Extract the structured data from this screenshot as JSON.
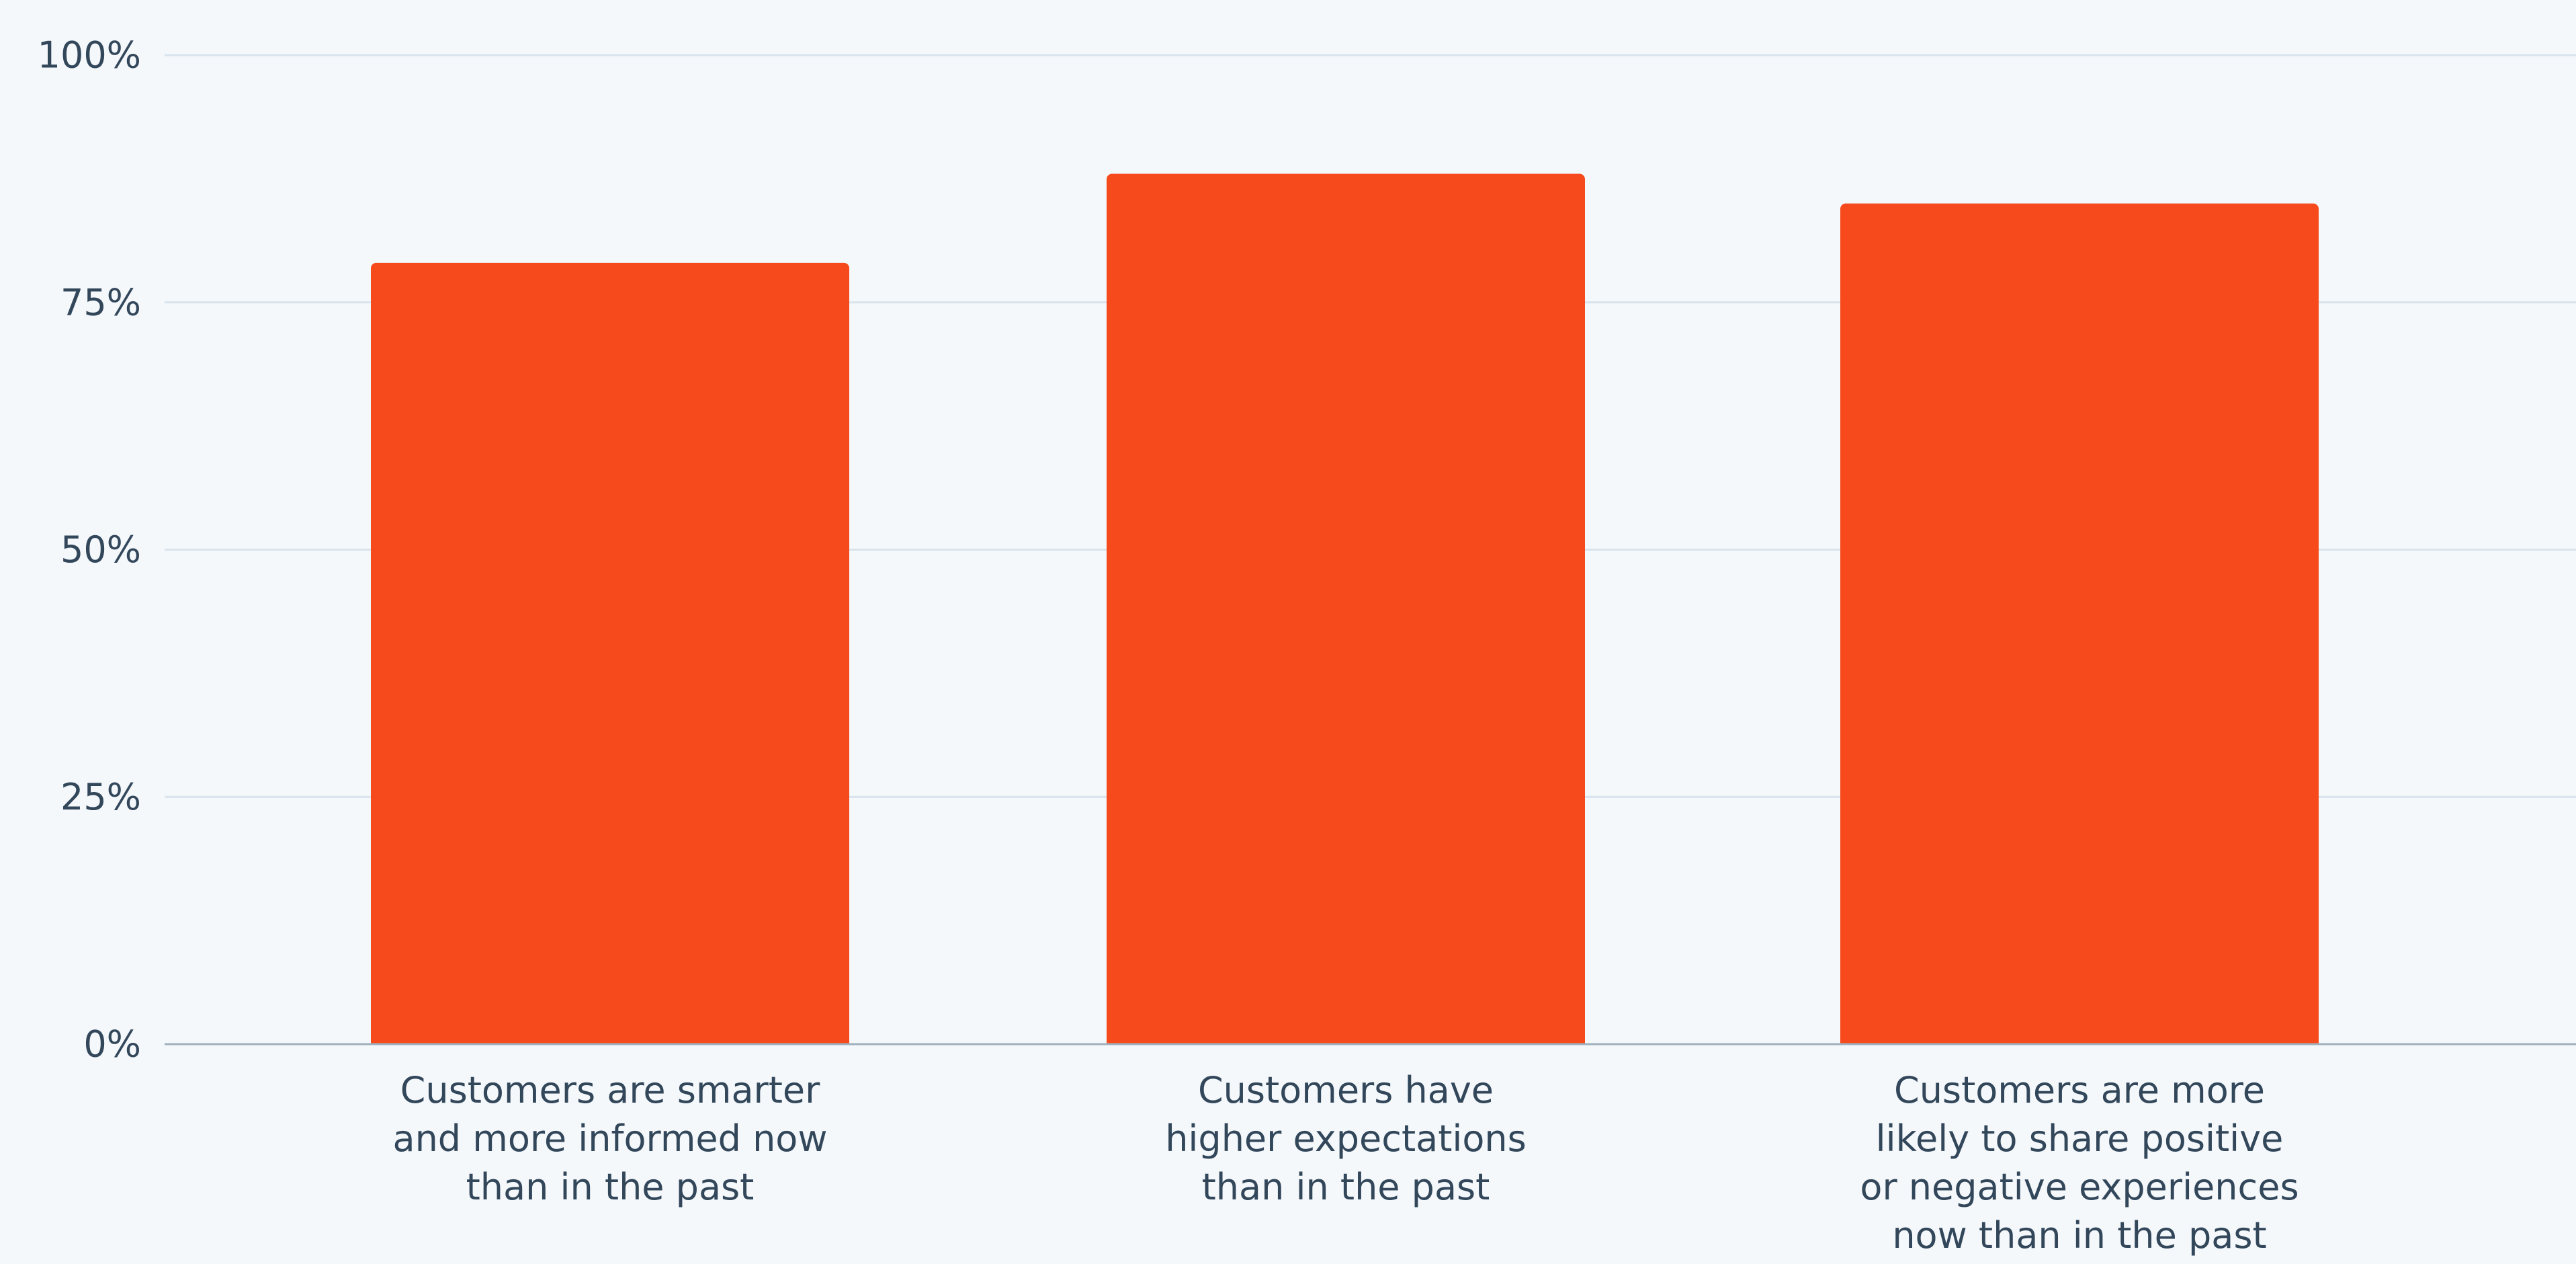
{
  "chart_data": {
    "type": "bar",
    "categories": [
      "Customers are smarter and more informed now than in the past",
      "Customers have higher expectations than in the past",
      "Customers are more likely to share positive or negative experiences now than in the past"
    ],
    "category_lines": [
      [
        "Customers are smarter",
        "and more informed now",
        "than in the past"
      ],
      [
        "Customers have",
        "higher expectations",
        "than in the past"
      ],
      [
        "Customers are more",
        "likely to share positive",
        "or negative experiences",
        "now than in the past"
      ]
    ],
    "values": [
      79,
      88,
      85
    ],
    "ylim": [
      0,
      100
    ],
    "yticks": [
      0,
      25,
      50,
      75,
      100
    ],
    "ytick_labels": [
      "0%",
      "25%",
      "50%",
      "75%",
      "100%"
    ],
    "grid": true,
    "bar_color": "#f64a1c",
    "title": "",
    "xlabel": "",
    "ylabel": ""
  }
}
